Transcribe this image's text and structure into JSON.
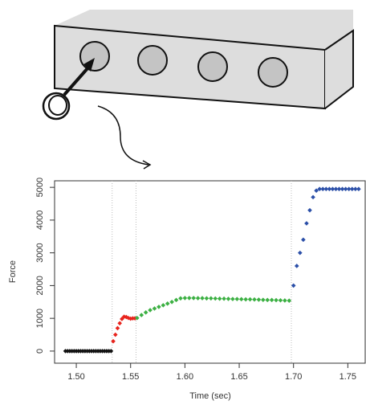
{
  "chart_data": {
    "type": "scatter",
    "x_label": "Time (sec)",
    "y_label": "Force",
    "xlim": [
      1.48,
      1.766
    ],
    "ylim": [
      -370,
      5200
    ],
    "xticks": [
      {
        "value": 1.5,
        "label": "1.50"
      },
      {
        "value": 1.55,
        "label": "1.55"
      },
      {
        "value": 1.6,
        "label": "1.60"
      },
      {
        "value": 1.65,
        "label": "1.65"
      },
      {
        "value": 1.7,
        "label": "1.70"
      },
      {
        "value": 1.75,
        "label": "1.75"
      }
    ],
    "yticks": [
      0,
      1000,
      2000,
      3000,
      4000,
      5000
    ],
    "vlines": [
      1.533,
      1.555,
      1.698
    ],
    "series": [
      {
        "color": "#111111",
        "x": [
          1.49,
          1.492,
          1.494,
          1.496,
          1.498,
          1.5,
          1.502,
          1.504,
          1.506,
          1.508,
          1.51,
          1.512,
          1.514,
          1.516,
          1.518,
          1.52,
          1.522,
          1.524,
          1.526,
          1.528,
          1.53,
          1.532
        ],
        "values": [
          0,
          0,
          0,
          0,
          0,
          0,
          0,
          0,
          0,
          0,
          0,
          0,
          0,
          0,
          0,
          0,
          0,
          0,
          0,
          0,
          0,
          0
        ]
      },
      {
        "color": "#e8231c",
        "x": [
          1.534,
          1.536,
          1.538,
          1.54,
          1.542,
          1.544,
          1.546,
          1.548,
          1.55,
          1.552,
          1.554
        ],
        "values": [
          300,
          500,
          700,
          850,
          980,
          1050,
          1040,
          1010,
          990,
          1000,
          1000
        ]
      },
      {
        "color": "#3cb043",
        "x": [
          1.556,
          1.56,
          1.564,
          1.568,
          1.572,
          1.576,
          1.58,
          1.584,
          1.588,
          1.592,
          1.596,
          1.6,
          1.604,
          1.608,
          1.612,
          1.616,
          1.62,
          1.624,
          1.628,
          1.632,
          1.636,
          1.64,
          1.644,
          1.648,
          1.652,
          1.656,
          1.66,
          1.664,
          1.668,
          1.672,
          1.676,
          1.68,
          1.684,
          1.688,
          1.692,
          1.696
        ],
        "values": [
          1010,
          1100,
          1180,
          1250,
          1300,
          1350,
          1400,
          1450,
          1500,
          1560,
          1610,
          1620,
          1620,
          1620,
          1615,
          1615,
          1610,
          1610,
          1605,
          1600,
          1600,
          1595,
          1590,
          1590,
          1585,
          1580,
          1580,
          1575,
          1570,
          1565,
          1560,
          1560,
          1555,
          1550,
          1545,
          1540
        ]
      },
      {
        "color": "#2b4fa8",
        "x": [
          1.7,
          1.703,
          1.706,
          1.709,
          1.712,
          1.715,
          1.718,
          1.721,
          1.724,
          1.727,
          1.73,
          1.733,
          1.736,
          1.739,
          1.742,
          1.745,
          1.748,
          1.751,
          1.754,
          1.757,
          1.76
        ],
        "values": [
          2000,
          2600,
          3000,
          3400,
          3900,
          4300,
          4700,
          4900,
          4950,
          4950,
          4950,
          4950,
          4950,
          4950,
          4950,
          4950,
          4950,
          4950,
          4950,
          4950,
          4950
        ]
      }
    ]
  }
}
